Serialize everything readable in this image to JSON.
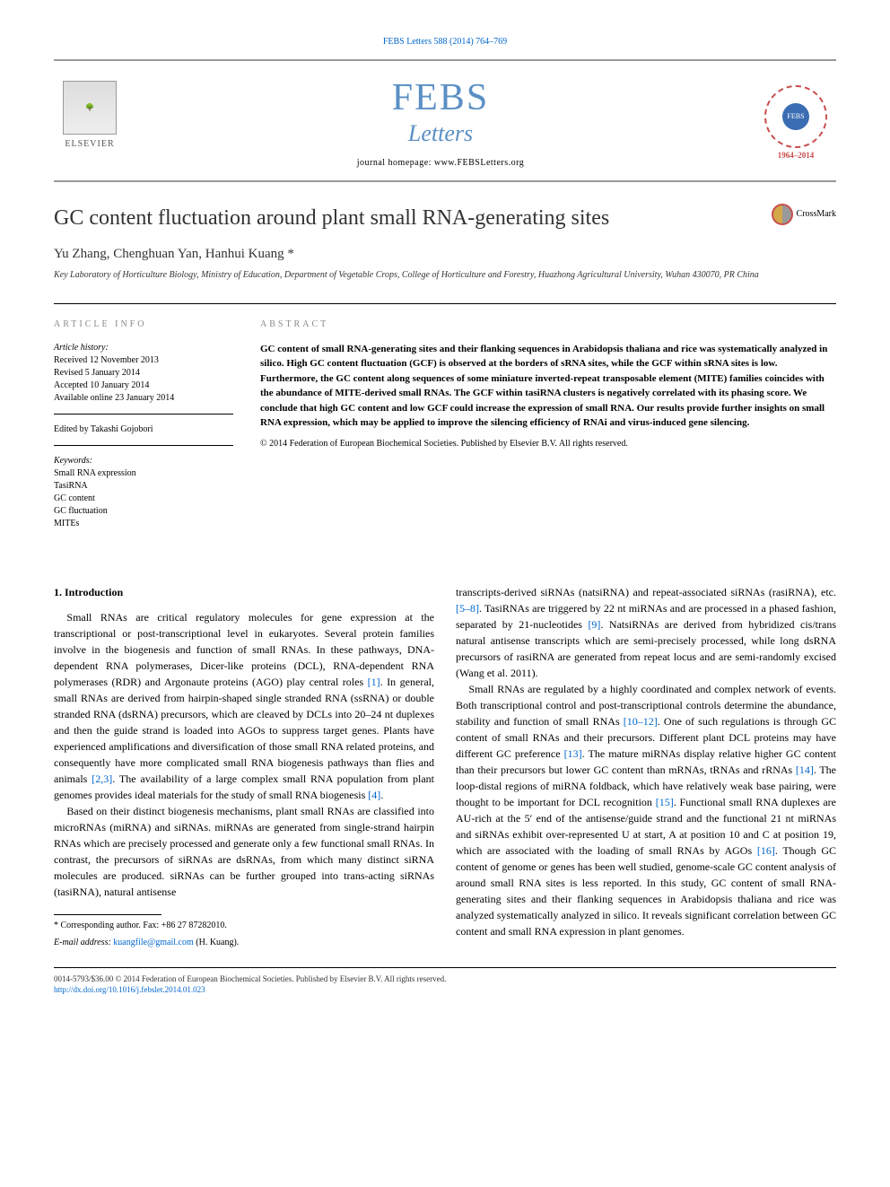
{
  "header_citation": "FEBS Letters 588 (2014) 764–769",
  "publisher": {
    "name": "ELSEVIER"
  },
  "journal": {
    "logo_main": "FEBS",
    "logo_sub": "Letters",
    "homepage_label": "journal homepage:",
    "homepage_url": "www.FEBSLetters.org"
  },
  "anniversary": {
    "center": "FEBS",
    "years": "1964–2014"
  },
  "crossmark_label": "CrossMark",
  "title": "GC content fluctuation around plant small RNA-generating sites",
  "authors": "Yu Zhang, Chenghuan Yan, Hanhui Kuang *",
  "affiliation": "Key Laboratory of Horticulture Biology, Ministry of Education, Department of Vegetable Crops, College of Horticulture and Forestry, Huazhong Agricultural University, Wuhan 430070, PR China",
  "info_heading": "ARTICLE INFO",
  "abstract_heading": "ABSTRACT",
  "history": {
    "label": "Article history:",
    "received": "Received 12 November 2013",
    "revised": "Revised 5 January 2014",
    "accepted": "Accepted 10 January 2014",
    "online": "Available online 23 January 2014"
  },
  "editor": "Edited by Takashi Gojobori",
  "keywords": {
    "label": "Keywords:",
    "items": [
      "Small RNA expression",
      "TasiRNA",
      "GC content",
      "GC fluctuation",
      "MITEs"
    ]
  },
  "abstract": "GC content of small RNA-generating sites and their flanking sequences in Arabidopsis thaliana and rice was systematically analyzed in silico. High GC content fluctuation (GCF) is observed at the borders of sRNA sites, while the GCF within sRNA sites is low. Furthermore, the GC content along sequences of some miniature inverted-repeat transposable element (MITE) families coincides with the abundance of MITE-derived small RNAs. The GCF within tasiRNA clusters is negatively correlated with its phasing score. We conclude that high GC content and low GCF could increase the expression of small RNA. Our results provide further insights on small RNA expression, which may be applied to improve the silencing efficiency of RNAi and virus-induced gene silencing.",
  "abstract_copyright": "© 2014 Federation of European Biochemical Societies. Published by Elsevier B.V. All rights reserved.",
  "section1_heading": "1. Introduction",
  "col_left": {
    "p1": "Small RNAs are critical regulatory molecules for gene expression at the transcriptional or post-transcriptional level in eukaryotes. Several protein families involve in the biogenesis and function of small RNAs. In these pathways, DNA-dependent RNA polymerases, Dicer-like proteins (DCL), RNA-dependent RNA polymerases (RDR) and Argonaute proteins (AGO) play central roles ",
    "c1": "[1]",
    "p1b": ". In general, small RNAs are derived from hairpin-shaped single stranded RNA (ssRNA) or double stranded RNA (dsRNA) precursors, which are cleaved by DCLs into 20–24 nt duplexes and then the guide strand is loaded into AGOs to suppress target genes. Plants have experienced amplifications and diversification of those small RNA related proteins, and consequently have more complicated small RNA biogenesis pathways than flies and animals ",
    "c2": "[2,3]",
    "p1c": ". The availability of a large complex small RNA population from plant genomes provides ideal materials for the study of small RNA biogenesis ",
    "c3": "[4]",
    "p1d": ".",
    "p2": "Based on their distinct biogenesis mechanisms, plant small RNAs are classified into microRNAs (miRNA) and siRNAs. miRNAs are generated from single-strand hairpin RNAs which are precisely processed and generate only a few functional small RNAs. In contrast, the precursors of siRNAs are dsRNAs, from which many distinct siRNA molecules are produced. siRNAs can be further grouped into trans-acting siRNAs (tasiRNA), natural antisense"
  },
  "col_right": {
    "p1a": "transcripts-derived siRNAs (natsiRNA) and repeat-associated siRNAs (rasiRNA), etc. ",
    "c1": "[5–8]",
    "p1b": ". TasiRNAs are triggered by 22 nt miRNAs and are processed in a phased fashion, separated by 21-nucleotides ",
    "c2": "[9]",
    "p1c": ". NatsiRNAs are derived from hybridized cis/trans natural antisense transcripts which are semi-precisely processed, while long dsRNA precursors of rasiRNA are generated from repeat locus and are semi-randomly excised (Wang et al. 2011).",
    "p2a": "Small RNAs are regulated by a highly coordinated and complex network of events. Both transcriptional control and post-transcriptional controls determine the abundance, stability and function of small RNAs ",
    "c3": "[10–12]",
    "p2b": ". One of such regulations is through GC content of small RNAs and their precursors. Different plant DCL proteins may have different GC preference ",
    "c4": "[13]",
    "p2c": ". The mature miRNAs display relative higher GC content than their precursors but lower GC content than mRNAs, tRNAs and rRNAs ",
    "c5": "[14]",
    "p2d": ". The loop-distal regions of miRNA foldback, which have relatively weak base pairing, were thought to be important for DCL recognition ",
    "c6": "[15]",
    "p2e": ". Functional small RNA duplexes are AU-rich at the 5′ end of the antisense/guide strand and the functional 21 nt miRNAs and siRNAs exhibit over-represented U at start, A at position 10 and C at position 19, which are associated with the loading of small RNAs by AGOs ",
    "c7": "[16]",
    "p2f": ". Though GC content of genome or genes has been well studied, genome-scale GC content analysis of around small RNA sites is less reported. In this study, GC content of small RNA-generating sites and their flanking sequences in Arabidopsis thaliana and rice was analyzed systematically analyzed in silico. It reveals significant correlation between GC content and small RNA expression in plant genomes."
  },
  "corresponding": {
    "label": "* Corresponding author. Fax: +86 27 87282010.",
    "email_label": "E-mail address:",
    "email": "kuangfile@gmail.com",
    "email_suffix": "(H. Kuang)."
  },
  "doi": {
    "issn": "0014-5793/$36.00 © 2014 Federation of European Biochemical Societies. Published by Elsevier B.V. All rights reserved.",
    "url": "http://dx.doi.org/10.1016/j.febslet.2014.01.023"
  },
  "colors": {
    "link": "#0066cc",
    "febs_blue": "#5a8fc4",
    "anniv_red": "#c94d4d",
    "anniv_blue": "#3b6db3"
  }
}
